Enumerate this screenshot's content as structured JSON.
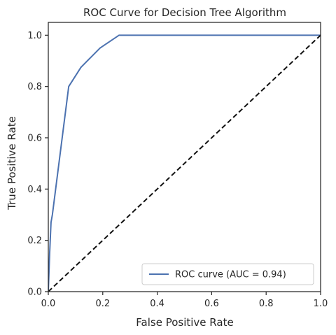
{
  "chart_data": {
    "type": "line",
    "title": "ROC Curve for Decision Tree Algorithm",
    "xlabel": "False Positive Rate",
    "ylabel": "True Positive Rate",
    "xlim": [
      0.0,
      1.0
    ],
    "ylim": [
      0.0,
      1.05
    ],
    "xticks": [
      0.0,
      0.2,
      0.4,
      0.6,
      0.8,
      1.0
    ],
    "yticks": [
      0.0,
      0.2,
      0.4,
      0.6,
      0.8,
      1.0
    ],
    "xtick_labels": [
      "0.0",
      "0.2",
      "0.4",
      "0.6",
      "0.8",
      "1.0"
    ],
    "ytick_labels": [
      "0.0",
      "0.2",
      "0.4",
      "0.6",
      "0.8",
      "1.0"
    ],
    "grid": false,
    "legend": {
      "position": "lower-right",
      "entries": [
        "ROC curve (AUC = 0.94)"
      ]
    },
    "series": [
      {
        "name": "ROC curve (AUC = 0.94)",
        "color": "#4c72b0",
        "style": "solid",
        "x": [
          0.0,
          0.005,
          0.01,
          0.015,
          0.075,
          0.12,
          0.19,
          0.26,
          1.0
        ],
        "y": [
          0.0,
          0.15,
          0.27,
          0.3,
          0.8,
          0.875,
          0.95,
          1.0,
          1.0
        ]
      },
      {
        "name": "",
        "color": "#111111",
        "style": "dashed",
        "x": [
          0.0,
          1.0
        ],
        "y": [
          0.0,
          1.0
        ]
      }
    ]
  }
}
